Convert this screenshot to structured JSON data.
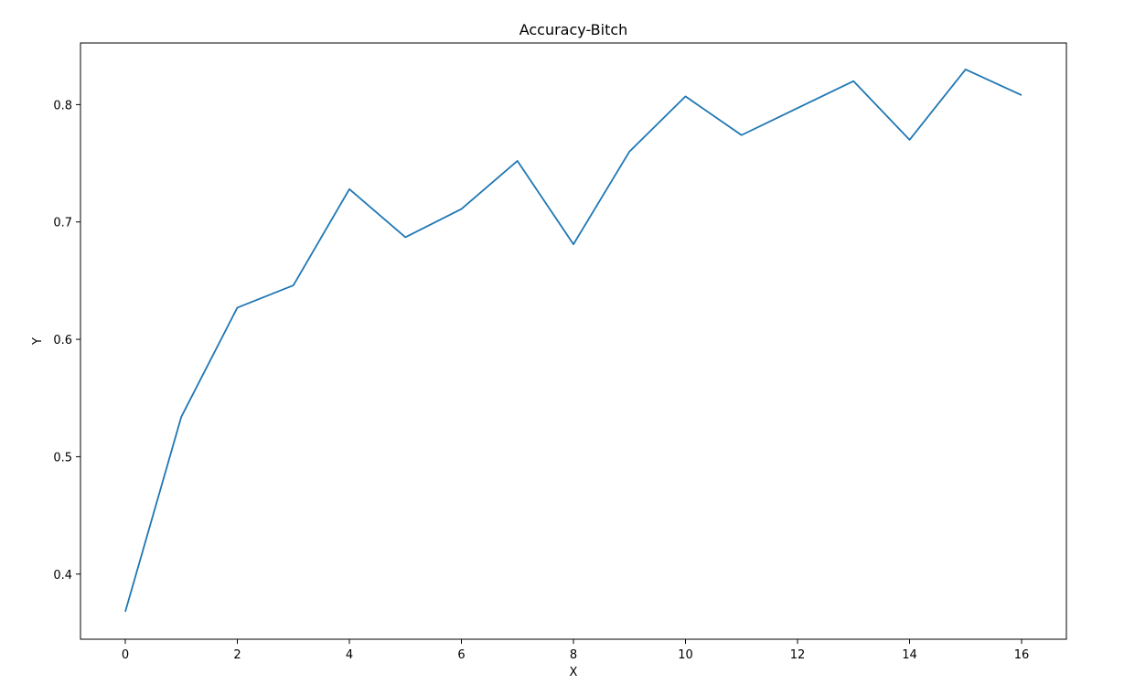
{
  "chart_data": {
    "type": "line",
    "title": "Accuracy-Bitch",
    "xlabel": "X",
    "ylabel": "Y",
    "xlim": [
      -0.8,
      16.8
    ],
    "ylim": [
      0.3445,
      0.8525
    ],
    "xticks": [
      0,
      2,
      4,
      6,
      8,
      10,
      12,
      14,
      16
    ],
    "yticks": [
      0.4,
      0.5,
      0.6,
      0.7,
      0.8
    ],
    "grid": false,
    "legend": "none",
    "series": [
      {
        "color": "#1f77b4",
        "x": [
          0,
          1,
          2,
          3,
          4,
          5,
          6,
          7,
          8,
          9,
          10,
          11,
          12,
          13,
          14,
          15,
          16
        ],
        "y": [
          0.368,
          0.534,
          0.627,
          0.646,
          0.728,
          0.687,
          0.711,
          0.752,
          0.681,
          0.76,
          0.807,
          0.774,
          0.797,
          0.82,
          0.77,
          0.83,
          0.808
        ]
      }
    ]
  }
}
